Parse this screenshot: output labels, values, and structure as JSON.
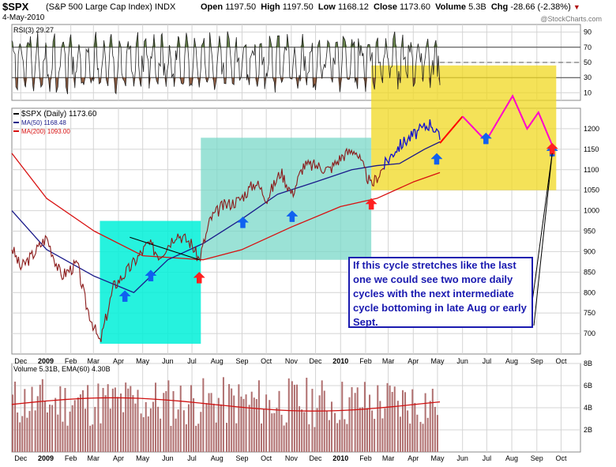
{
  "header": {
    "symbol": "$SPX",
    "name": "(S&P 500 Large Cap Index) INDX",
    "date": "4-May-2010",
    "open_label": "Open",
    "open": "1197.50",
    "high_label": "High",
    "high": "1197.50",
    "low_label": "Low",
    "low": "1168.12",
    "close_label": "Close",
    "close": "1173.60",
    "volume_label": "Volume",
    "volume": "5.3B",
    "chg_label": "Chg",
    "chg": "-28.66 (-2.38%)",
    "chg_icon": "down-triangle-icon",
    "watermark": "@StockCharts.com"
  },
  "annotation": "If this cycle stretches like the last one we could see two more daily cycles with the next intermediate cycle bottoming in late Aug or early Sept.",
  "colors": {
    "price": "#8b1a1a",
    "price_blue": "#1010d0",
    "ma50": "#1a1a8a",
    "ma200": "#d81010",
    "projection_red": "#ff0000",
    "projection_magenta": "#ff00cc",
    "box_cyan": "#00f0d8",
    "box_teal": "#7ad8c8",
    "box_yellow": "#f0d820",
    "arrow_blue": "#1060f0",
    "arrow_red": "#ff2020",
    "note_blue": "#1a1ab0",
    "rsi_fill": "#5a7a3a",
    "rsi_fill_low": "#8a5030",
    "volume_bar": "#b07070",
    "volume_ema": "#d01010"
  },
  "chart_data": [
    {
      "type": "line",
      "panel": "RSI",
      "legend": "RSI(3) 29.27",
      "ylim": [
        0,
        100
      ],
      "y_ticks": [
        "90",
        "70",
        "50",
        "30",
        "10"
      ],
      "levels": [
        70,
        30
      ],
      "current": 29.27
    },
    {
      "type": "line",
      "panel": "price",
      "legend": [
        "$SPX (Daily) 1173.60",
        "MA(50) 1168.48",
        "MA(200) 1093.00"
      ],
      "ylim": [
        650,
        1250
      ],
      "y_ticks": [
        "1200",
        "1150",
        "1100",
        "1050",
        "1000",
        "950",
        "900",
        "850",
        "800",
        "750",
        "700"
      ],
      "x_ticks": [
        "Dec",
        "2009",
        "Feb",
        "Mar",
        "Apr",
        "May",
        "Jun",
        "Jul",
        "Aug",
        "Sep",
        "Oct",
        "Nov",
        "Dec",
        "2010",
        "Feb",
        "Mar",
        "Apr",
        "May",
        "Jun",
        "Jul",
        "Aug",
        "Sep",
        "Oct"
      ],
      "series": [
        {
          "name": "$SPX",
          "x": [
            "2008-11-20",
            "2008-12-01",
            "2008-12-15",
            "2009-01-02",
            "2009-01-20",
            "2009-02-09",
            "2009-02-20",
            "2009-03-09",
            "2009-03-26",
            "2009-04-15",
            "2009-05-08",
            "2009-05-22",
            "2009-06-12",
            "2009-06-30",
            "2009-07-10",
            "2009-07-24",
            "2009-08-07",
            "2009-08-28",
            "2009-09-18",
            "2009-10-02",
            "2009-10-19",
            "2009-11-02",
            "2009-11-16",
            "2009-12-02",
            "2009-12-18",
            "2010-01-04",
            "2010-01-19",
            "2010-02-08",
            "2010-02-24",
            "2010-03-10",
            "2010-03-25",
            "2010-04-09",
            "2010-04-23",
            "2010-05-04"
          ],
          "y": [
            910,
            860,
            890,
            935,
            840,
            870,
            770,
            676,
            815,
            860,
            920,
            890,
            945,
            920,
            880,
            980,
            1010,
            1025,
            1070,
            1030,
            1095,
            1040,
            1110,
            1110,
            1100,
            1135,
            1150,
            1060,
            1110,
            1150,
            1175,
            1195,
            1215,
            1173
          ]
        },
        {
          "name": "MA(50)",
          "x": [
            "2008-11-20",
            "2009-01-02",
            "2009-03-02",
            "2009-04-20",
            "2009-06-01",
            "2009-07-15",
            "2009-09-01",
            "2009-10-15",
            "2009-12-01",
            "2010-01-15",
            "2010-02-15",
            "2010-03-15",
            "2010-04-15",
            "2010-05-04"
          ],
          "y": [
            1000,
            905,
            840,
            800,
            880,
            920,
            980,
            1040,
            1070,
            1100,
            1110,
            1115,
            1150,
            1168
          ]
        },
        {
          "name": "MA(200)",
          "x": [
            "2008-11-20",
            "2009-01-02",
            "2009-03-02",
            "2009-05-01",
            "2009-07-15",
            "2009-09-01",
            "2009-11-01",
            "2010-01-01",
            "2010-02-15",
            "2010-04-01",
            "2010-05-04"
          ],
          "y": [
            1140,
            1030,
            950,
            890,
            880,
            905,
            960,
            1010,
            1030,
            1070,
            1093
          ]
        },
        {
          "name": "Projection",
          "x": [
            "2010-05-04",
            "2010-06-01",
            "2010-06-30",
            "2010-08-02",
            "2010-08-20",
            "2010-09-03",
            "2010-09-20"
          ],
          "y": [
            1165,
            1230,
            1170,
            1280,
            1200,
            1240,
            1160
          ]
        }
      ],
      "arrows_blue_up": [
        "2009-04-09",
        "2009-05-11",
        "2009-09-02",
        "2009-11-02",
        "2010-04-30",
        "2010-06-30",
        "2010-09-20"
      ],
      "arrows_red_up": [
        "2009-07-10",
        "2010-02-08"
      ]
    },
    {
      "type": "bar",
      "panel": "volume",
      "legend": "Volume 5.31B, EMA(60) 4.30B",
      "ylim": [
        0,
        8
      ],
      "y_ticks": [
        "8B",
        "6B",
        "4B",
        "2B"
      ],
      "ema_level": 4.3,
      "x_ticks": [
        "Dec",
        "2009",
        "Feb",
        "Mar",
        "Apr",
        "May",
        "Jun",
        "Jul",
        "Aug",
        "Sep",
        "Oct",
        "Nov",
        "Dec",
        "2010",
        "Feb",
        "Mar",
        "Apr",
        "May",
        "Jun",
        "Jul",
        "Aug",
        "Sep",
        "Oct"
      ]
    }
  ]
}
